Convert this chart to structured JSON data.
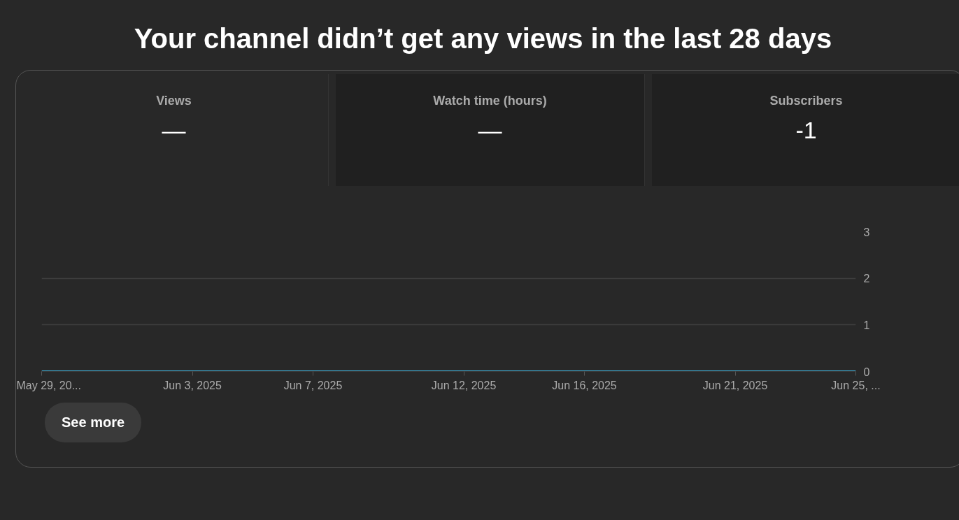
{
  "chart_data": {
    "type": "line",
    "title": "Your channel didn’t get any views in the last 28 days",
    "annotations": [
      "Views",
      "—",
      "Watch time (hours)",
      "—",
      "Subscribers",
      "-1",
      "See more"
    ],
    "x": [
      "2025-05-29",
      "2025-05-30",
      "2025-05-31",
      "2025-06-01",
      "2025-06-02",
      "2025-06-03",
      "2025-06-04",
      "2025-06-05",
      "2025-06-06",
      "2025-06-07",
      "2025-06-08",
      "2025-06-09",
      "2025-06-10",
      "2025-06-11",
      "2025-06-12",
      "2025-06-13",
      "2025-06-14",
      "2025-06-15",
      "2025-06-16",
      "2025-06-17",
      "2025-06-18",
      "2025-06-19",
      "2025-06-20",
      "2025-06-21",
      "2025-06-22",
      "2025-06-23",
      "2025-06-24",
      "2025-06-25"
    ],
    "series": [
      {
        "color": "#3ea8cf",
        "values": [
          0,
          0,
          0,
          0,
          0,
          0,
          0,
          0,
          0,
          0,
          0,
          0,
          0,
          0,
          0,
          0,
          0,
          0,
          0,
          0,
          0,
          0,
          0,
          0,
          0,
          0,
          0,
          0
        ]
      }
    ],
    "xlim": [
      "2025-05-29",
      "2025-06-25"
    ],
    "xticks": [
      {
        "value": "2025-05-29",
        "label": "May 29, 20..."
      },
      {
        "value": "2025-06-03",
        "label": "Jun 3, 2025"
      },
      {
        "value": "2025-06-07",
        "label": "Jun 7, 2025"
      },
      {
        "value": "2025-06-12",
        "label": "Jun 12, 2025"
      },
      {
        "value": "2025-06-16",
        "label": "Jun 16, 2025"
      },
      {
        "value": "2025-06-21",
        "label": "Jun 21, 2025"
      },
      {
        "value": "2025-06-25",
        "label": "Jun 25, ..."
      }
    ],
    "ylim": [
      0,
      3
    ],
    "yticks": [
      0,
      1,
      2,
      3
    ],
    "grid": "y",
    "marker": "none",
    "line_style": "solid"
  }
}
